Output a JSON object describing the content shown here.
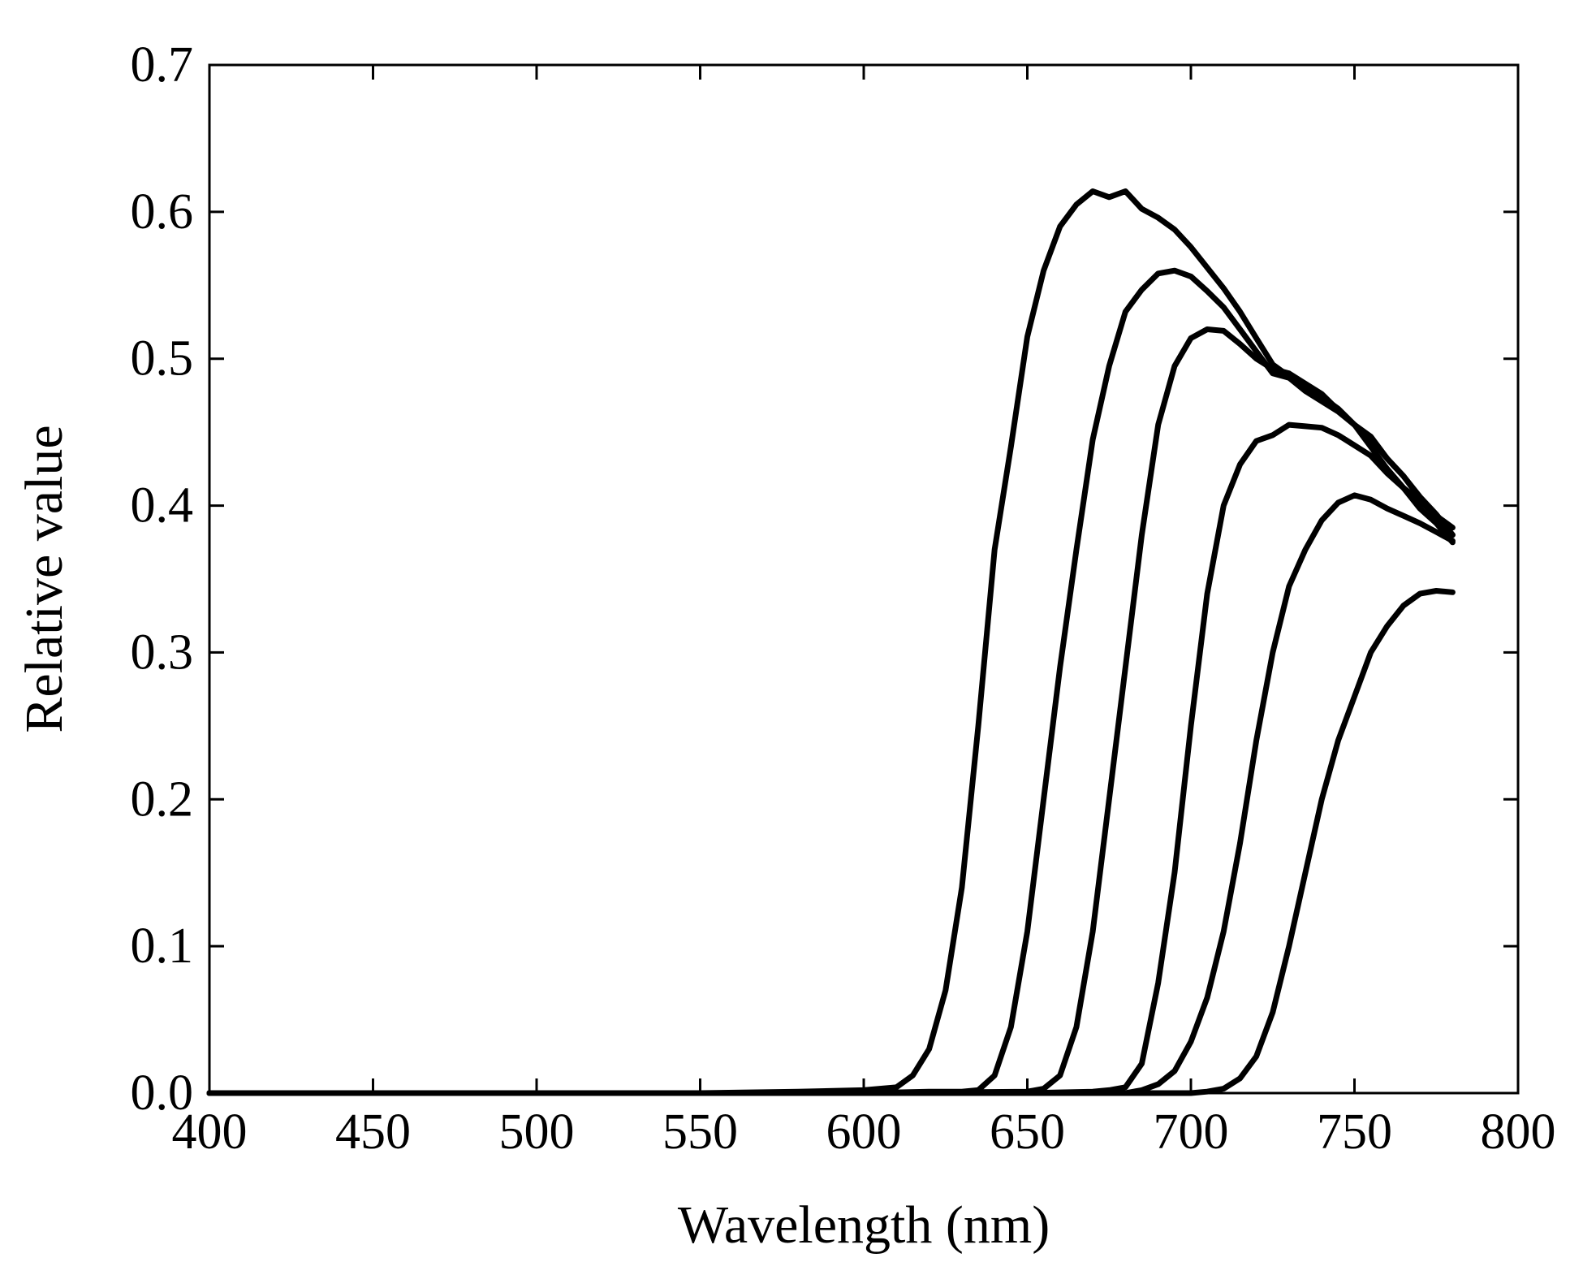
{
  "chart_data": {
    "type": "line",
    "xlabel": "Wavelength (nm)",
    "ylabel": "Relative value",
    "xlim": [
      400,
      800
    ],
    "ylim": [
      0,
      0.7
    ],
    "xticks": [
      400,
      450,
      500,
      550,
      600,
      650,
      700,
      750,
      800
    ],
    "yticks": [
      0.0,
      0.1,
      0.2,
      0.3,
      0.4,
      0.5,
      0.6,
      0.7
    ],
    "ytick_labels": [
      "0.0",
      "0.1",
      "0.2",
      "0.3",
      "0.4",
      "0.5",
      "0.6",
      "0.7"
    ],
    "grid": false,
    "legend": "none",
    "line_color": "#000000",
    "series": [
      {
        "x": [
          400,
          450,
          500,
          550,
          580,
          600,
          610,
          615,
          620,
          625,
          630,
          635,
          640,
          645,
          650,
          655,
          660,
          665,
          670,
          675,
          680,
          685,
          690,
          695,
          700,
          705,
          710,
          715,
          720,
          725,
          730,
          735,
          740,
          745,
          750,
          755,
          760,
          765,
          770,
          775,
          780
        ],
        "y": [
          0,
          0,
          0,
          0,
          0.001,
          0.002,
          0.004,
          0.012,
          0.03,
          0.07,
          0.14,
          0.25,
          0.37,
          0.44,
          0.515,
          0.56,
          0.59,
          0.605,
          0.614,
          0.61,
          0.614,
          0.602,
          0.596,
          0.588,
          0.576,
          0.562,
          0.548,
          0.532,
          0.514,
          0.496,
          0.488,
          0.481,
          0.474,
          0.466,
          0.455,
          0.44,
          0.425,
          0.412,
          0.398,
          0.388,
          0.375
        ]
      },
      {
        "x": [
          400,
          500,
          600,
          620,
          630,
          635,
          640,
          645,
          650,
          655,
          660,
          665,
          670,
          675,
          680,
          685,
          690,
          695,
          700,
          705,
          710,
          715,
          720,
          725,
          730,
          735,
          740,
          745,
          750,
          755,
          760,
          765,
          770,
          775,
          780
        ],
        "y": [
          0,
          0,
          0,
          0.001,
          0.001,
          0.002,
          0.012,
          0.045,
          0.11,
          0.2,
          0.29,
          0.37,
          0.445,
          0.495,
          0.532,
          0.547,
          0.558,
          0.56,
          0.556,
          0.546,
          0.535,
          0.52,
          0.505,
          0.49,
          0.487,
          0.478,
          0.471,
          0.464,
          0.455,
          0.447,
          0.432,
          0.42,
          0.406,
          0.394,
          0.38
        ]
      },
      {
        "x": [
          400,
          500,
          600,
          650,
          655,
          660,
          665,
          670,
          675,
          680,
          685,
          690,
          695,
          700,
          705,
          710,
          715,
          720,
          725,
          730,
          735,
          740,
          745,
          750,
          755,
          760,
          765,
          770,
          775,
          780
        ],
        "y": [
          0,
          0,
          0,
          0.001,
          0.003,
          0.012,
          0.045,
          0.11,
          0.2,
          0.29,
          0.38,
          0.455,
          0.495,
          0.514,
          0.52,
          0.519,
          0.51,
          0.5,
          0.493,
          0.49,
          0.483,
          0.476,
          0.465,
          0.455,
          0.445,
          0.432,
          0.42,
          0.405,
          0.392,
          0.38
        ]
      },
      {
        "x": [
          400,
          500,
          600,
          650,
          670,
          675,
          680,
          685,
          690,
          695,
          700,
          705,
          710,
          715,
          720,
          725,
          730,
          735,
          740,
          745,
          750,
          755,
          760,
          765,
          770,
          775,
          780
        ],
        "y": [
          0,
          0,
          0,
          0,
          0.001,
          0.002,
          0.004,
          0.02,
          0.075,
          0.15,
          0.25,
          0.34,
          0.4,
          0.428,
          0.444,
          0.448,
          0.455,
          0.454,
          0.453,
          0.448,
          0.441,
          0.434,
          0.422,
          0.412,
          0.403,
          0.393,
          0.385
        ]
      },
      {
        "x": [
          400,
          500,
          600,
          650,
          680,
          685,
          690,
          695,
          700,
          705,
          710,
          715,
          720,
          725,
          730,
          735,
          740,
          745,
          750,
          755,
          760,
          765,
          770,
          775,
          780
        ],
        "y": [
          0,
          0,
          0,
          0,
          0,
          0.002,
          0.006,
          0.015,
          0.035,
          0.065,
          0.11,
          0.17,
          0.24,
          0.3,
          0.345,
          0.37,
          0.39,
          0.402,
          0.407,
          0.404,
          0.398,
          0.393,
          0.388,
          0.382,
          0.376
        ]
      },
      {
        "x": [
          400,
          500,
          600,
          650,
          700,
          705,
          710,
          715,
          720,
          725,
          730,
          735,
          740,
          745,
          750,
          755,
          760,
          765,
          770,
          775,
          780
        ],
        "y": [
          0,
          0,
          0,
          0,
          0,
          0.001,
          0.003,
          0.01,
          0.025,
          0.055,
          0.1,
          0.15,
          0.2,
          0.24,
          0.27,
          0.3,
          0.318,
          0.332,
          0.34,
          0.342,
          0.341
        ]
      }
    ]
  }
}
